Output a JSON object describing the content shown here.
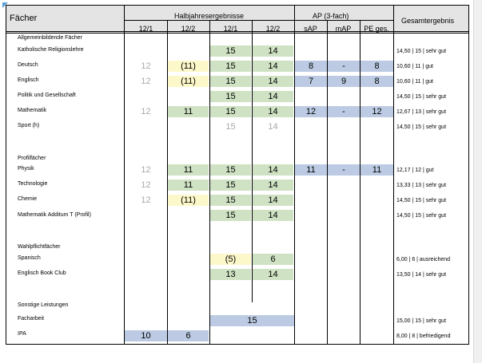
{
  "header": {
    "faecher": "Fächer",
    "halbjahr": "Halbjahresergebnisse",
    "ap": "AP (3-fach)",
    "gesamt": "Gesamtergebnis",
    "sub": [
      "12/1",
      "12/2",
      "12/1",
      "12/2",
      "sAP",
      "mAP",
      "PE ges."
    ]
  },
  "sections": {
    "allg": "Allgemeinbildende Fächer",
    "profil": "Profilfächer",
    "wahl": "Wahlpflichtfächer",
    "sonst": "Sonstige Leistungen"
  },
  "rows": [
    {
      "label": "Katholische Religionslehre",
      "c3": "15",
      "c4": "14",
      "total": "14,50 | 15 | sehr gut"
    },
    {
      "label": "Deutsch",
      "c1": "12",
      "c2": "(11)",
      "c3": "15",
      "c4": "14",
      "c5": "8",
      "c6": "-",
      "c7": "8",
      "total": "10,60 | 11 | gut"
    },
    {
      "label": "Englisch",
      "c1": "12",
      "c2": "(11)",
      "c3": "15",
      "c4": "14",
      "c5": "7",
      "c6": "9",
      "c7": "8",
      "total": "10,60 | 11 | gut"
    },
    {
      "label": "Politik und Gesellschaft",
      "c3": "15",
      "c4": "14",
      "total": "14,50 | 15 | sehr gut"
    },
    {
      "label": "Mathematik",
      "c1": "12",
      "c2": "11",
      "c3": "15",
      "c4": "14",
      "c5": "12",
      "c6": "-",
      "c7": "12",
      "total": "12,67 | 13 | sehr gut"
    },
    {
      "label": "Sport (h)",
      "c3": "15",
      "c4": "14",
      "total": "14,50 | 15 | sehr gut"
    },
    {
      "label": "Physik",
      "c1": "12",
      "c2": "11",
      "c3": "15",
      "c4": "14",
      "c5": "11",
      "c6": "-",
      "c7": "11",
      "total": "12,17 | 12 | gut"
    },
    {
      "label": "Technologie",
      "c1": "12",
      "c2": "11",
      "c3": "15",
      "c4": "14",
      "total": "13,33 | 13 | sehr gut"
    },
    {
      "label": "Chemie",
      "c1": "12",
      "c2": "(11)",
      "c3": "15",
      "c4": "14",
      "total": "14,50 | 15 | sehr gut"
    },
    {
      "label": "Mathematik Additum T (Profil)",
      "c3": "15",
      "c4": "14",
      "total": "14,50 | 15 | sehr gut"
    },
    {
      "label": "Spanisch",
      "c3": "(5)",
      "c4": "6",
      "total": "6,00 | 6 | ausreichend"
    },
    {
      "label": "Englisch Book Club",
      "c3": "13",
      "c4": "14",
      "total": "13,50 | 14 | sehr gut"
    },
    {
      "label": "Facharbeit",
      "c34": "15",
      "total": "15,00 | 15 | sehr gut"
    },
    {
      "label": "IPA",
      "c1": "10",
      "c2": "6",
      "total": "8,00 | 8 | befriedigend"
    }
  ]
}
